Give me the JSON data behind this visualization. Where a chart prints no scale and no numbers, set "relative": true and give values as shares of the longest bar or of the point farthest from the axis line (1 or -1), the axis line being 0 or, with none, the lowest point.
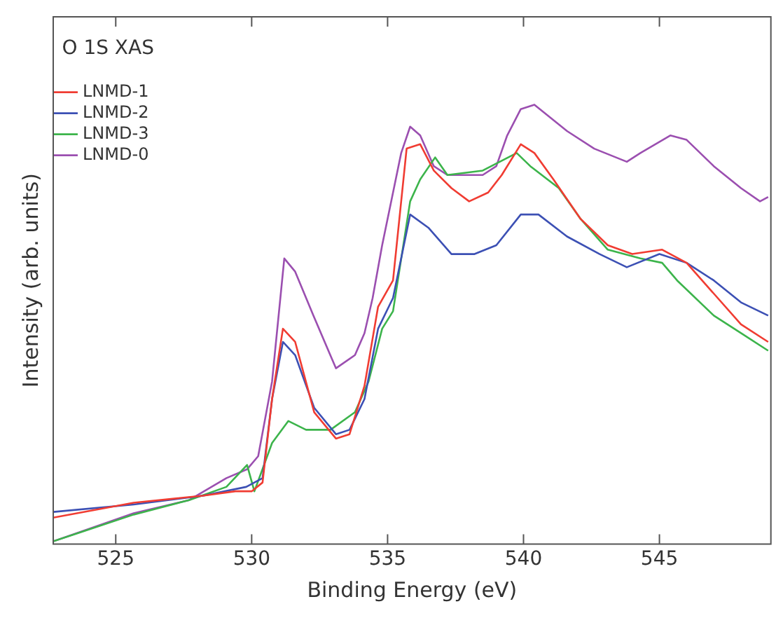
{
  "chart_data": {
    "type": "line",
    "legend_title": "O 1S XAS",
    "xlabel": "Binding Energy (eV)",
    "ylabel": "Intensity (arb. units)",
    "relative": true,
    "xlim": [
      522.7,
      549.1
    ],
    "xticks": [
      525,
      530,
      535,
      540,
      545
    ],
    "grid": false,
    "legend": "top left",
    "marker": "none",
    "line_style": "solid",
    "series": [
      {
        "name": "LNMD-1",
        "color": "#f03c32",
        "x": [
          522.7,
          525.66,
          528.2,
          529.4,
          530.0,
          530.4,
          530.75,
          531.15,
          531.6,
          532.3,
          533.1,
          533.6,
          534.15,
          534.65,
          535.2,
          535.7,
          536.2,
          536.7,
          537.35,
          538.0,
          538.7,
          539.2,
          539.9,
          540.4,
          541.1,
          542.1,
          543.1,
          544.0,
          545.1,
          546.0,
          547.0,
          548.0,
          549.0
        ],
        "values": [
          0.06,
          0.094,
          0.11,
          0.12,
          0.12,
          0.14,
          0.33,
          0.49,
          0.46,
          0.3,
          0.24,
          0.25,
          0.36,
          0.54,
          0.6,
          0.9,
          0.91,
          0.85,
          0.81,
          0.78,
          0.8,
          0.84,
          0.91,
          0.89,
          0.83,
          0.74,
          0.68,
          0.66,
          0.67,
          0.64,
          0.57,
          0.5,
          0.46
        ]
      },
      {
        "name": "LNMD-2",
        "color": "#3c50b4",
        "x": [
          522.7,
          525.66,
          528.2,
          529.8,
          530.4,
          530.75,
          531.15,
          531.6,
          532.3,
          533.1,
          533.6,
          534.15,
          534.65,
          535.2,
          535.83,
          536.5,
          537.35,
          538.2,
          539.0,
          539.9,
          540.55,
          541.6,
          542.8,
          543.8,
          545.0,
          546.0,
          547.0,
          548.0,
          549.0
        ],
        "values": [
          0.073,
          0.09,
          0.11,
          0.13,
          0.15,
          0.33,
          0.46,
          0.43,
          0.31,
          0.25,
          0.26,
          0.33,
          0.49,
          0.56,
          0.75,
          0.72,
          0.66,
          0.66,
          0.68,
          0.75,
          0.75,
          0.7,
          0.66,
          0.63,
          0.66,
          0.64,
          0.6,
          0.55,
          0.52
        ]
      },
      {
        "name": "LNMD-3",
        "color": "#3cb44b",
        "x": [
          522.7,
          525.66,
          527.7,
          529.07,
          529.83,
          530.1,
          530.75,
          531.35,
          532.0,
          532.9,
          533.8,
          534.3,
          534.8,
          535.2,
          535.83,
          536.2,
          536.75,
          537.2,
          538.5,
          539.75,
          540.25,
          541.3,
          542.1,
          543.1,
          544.3,
          545.1,
          545.65,
          547.0,
          548.0,
          549.0
        ],
        "values": [
          0.006,
          0.067,
          0.1,
          0.13,
          0.18,
          0.12,
          0.23,
          0.28,
          0.26,
          0.26,
          0.3,
          0.37,
          0.49,
          0.53,
          0.78,
          0.83,
          0.88,
          0.84,
          0.85,
          0.89,
          0.86,
          0.81,
          0.74,
          0.67,
          0.65,
          0.64,
          0.6,
          0.52,
          0.48,
          0.44
        ]
      },
      {
        "name": "LNMD-0",
        "color": "#9b4fb0",
        "x": [
          522.7,
          525.66,
          527.7,
          529.07,
          529.83,
          530.24,
          530.75,
          531.2,
          531.6,
          532.27,
          533.1,
          533.8,
          534.15,
          534.45,
          534.8,
          535.5,
          535.83,
          536.2,
          536.7,
          537.2,
          538.5,
          539.0,
          539.4,
          539.9,
          540.4,
          541.6,
          542.6,
          543.8,
          544.3,
          545.4,
          546.0,
          547.0,
          548.0,
          548.7,
          549.0
        ],
        "values": [
          0.006,
          0.07,
          0.1,
          0.15,
          0.17,
          0.2,
          0.37,
          0.65,
          0.62,
          0.52,
          0.4,
          0.43,
          0.48,
          0.56,
          0.68,
          0.89,
          0.95,
          0.93,
          0.86,
          0.84,
          0.84,
          0.86,
          0.93,
          0.99,
          1.0,
          0.94,
          0.9,
          0.87,
          0.89,
          0.93,
          0.92,
          0.86,
          0.81,
          0.78,
          0.79
        ]
      }
    ]
  }
}
